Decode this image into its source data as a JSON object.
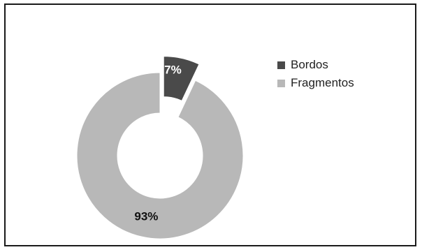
{
  "chart_data": {
    "type": "pie",
    "style": "donut",
    "categories": [
      "Bordos",
      "Fragmentos"
    ],
    "values": [
      7,
      93
    ],
    "data_labels": [
      "7%",
      "93%"
    ],
    "colors": [
      "#4a4a4a",
      "#b8b8b8"
    ],
    "exploded": [
      "Bordos"
    ],
    "legend_position": "right",
    "title": "",
    "grid": false
  },
  "legend": {
    "items": [
      {
        "label": "Bordos",
        "color": "#4a4a4a"
      },
      {
        "label": "Fragmentos",
        "color": "#b8b8b8"
      }
    ]
  }
}
